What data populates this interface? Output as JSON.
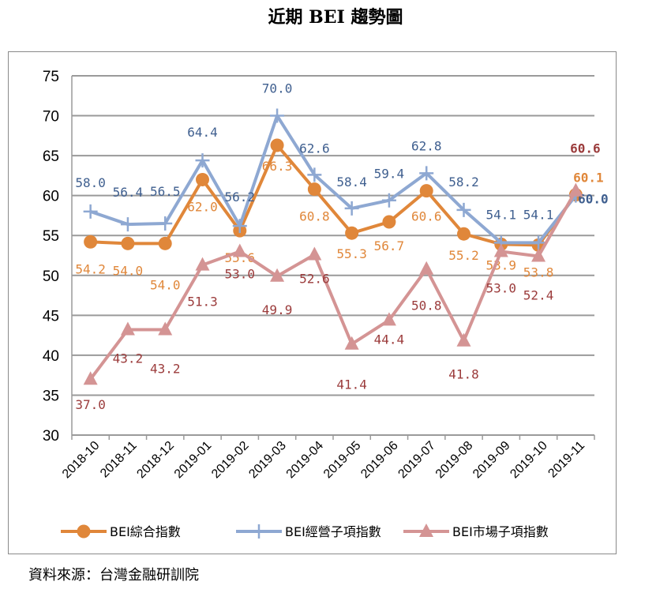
{
  "title": "近期 BEI 趨勢圖",
  "source": "資料來源：台灣金融研訓院",
  "chart_data": {
    "type": "line",
    "title": "近期 BEI 趨勢圖",
    "x": [
      "2018-10",
      "2018-11",
      "2018-12",
      "2019-01",
      "2019-02",
      "2019-03",
      "2019-04",
      "2019-05",
      "2019-06",
      "2019-07",
      "2019-08",
      "2019-09",
      "2019-10",
      "2019-11"
    ],
    "ylim": [
      30,
      75
    ],
    "yticks": [
      "30",
      "35",
      "40",
      "45",
      "50",
      "55",
      "60",
      "65",
      "70",
      "75"
    ],
    "grid": "horizontal",
    "legend_position": "bottom",
    "series": [
      {
        "name": "BEI綜合指數",
        "color": "#E0873A",
        "label_color": "#E0873A",
        "marker": "circle",
        "values": [
          54.2,
          54.0,
          54.0,
          62.0,
          55.6,
          66.3,
          60.8,
          55.3,
          56.7,
          60.6,
          55.2,
          53.9,
          53.8,
          60.1
        ],
        "labels": [
          "54.2",
          "54.0",
          "54.0",
          "62.0",
          "55.6",
          "66.3",
          "60.8",
          "55.3",
          "56.7",
          "60.6",
          "55.2",
          "53.9",
          "53.8",
          "60.1"
        ]
      },
      {
        "name": "BEI經營子項指數",
        "color": "#8EA8D2",
        "label_color": "#3F5F8F",
        "marker": "plus",
        "values": [
          58.0,
          56.4,
          56.5,
          64.4,
          56.2,
          70.0,
          62.6,
          58.4,
          59.4,
          62.8,
          58.2,
          54.1,
          54.1,
          60.0
        ],
        "labels": [
          "58.0",
          "56.4",
          "56.5",
          "64.4",
          "56.2",
          "70.0",
          "62.6",
          "58.4",
          "59.4",
          "62.8",
          "58.2",
          "54.1",
          "54.1",
          "60.0"
        ]
      },
      {
        "name": "BEI市場子項指數",
        "color": "#D49494",
        "label_color": "#9B3B3B",
        "marker": "triangle",
        "values": [
          37.0,
          43.2,
          43.2,
          51.3,
          53.0,
          49.9,
          52.6,
          41.4,
          44.4,
          50.8,
          41.8,
          53.0,
          52.4,
          60.6
        ],
        "labels": [
          "37.0",
          "43.2",
          "43.2",
          "51.3",
          "53.0",
          "49.9",
          "52.6",
          "41.4",
          "44.4",
          "50.8",
          "41.8",
          "53.0",
          "52.4",
          "60.6"
        ]
      }
    ]
  }
}
